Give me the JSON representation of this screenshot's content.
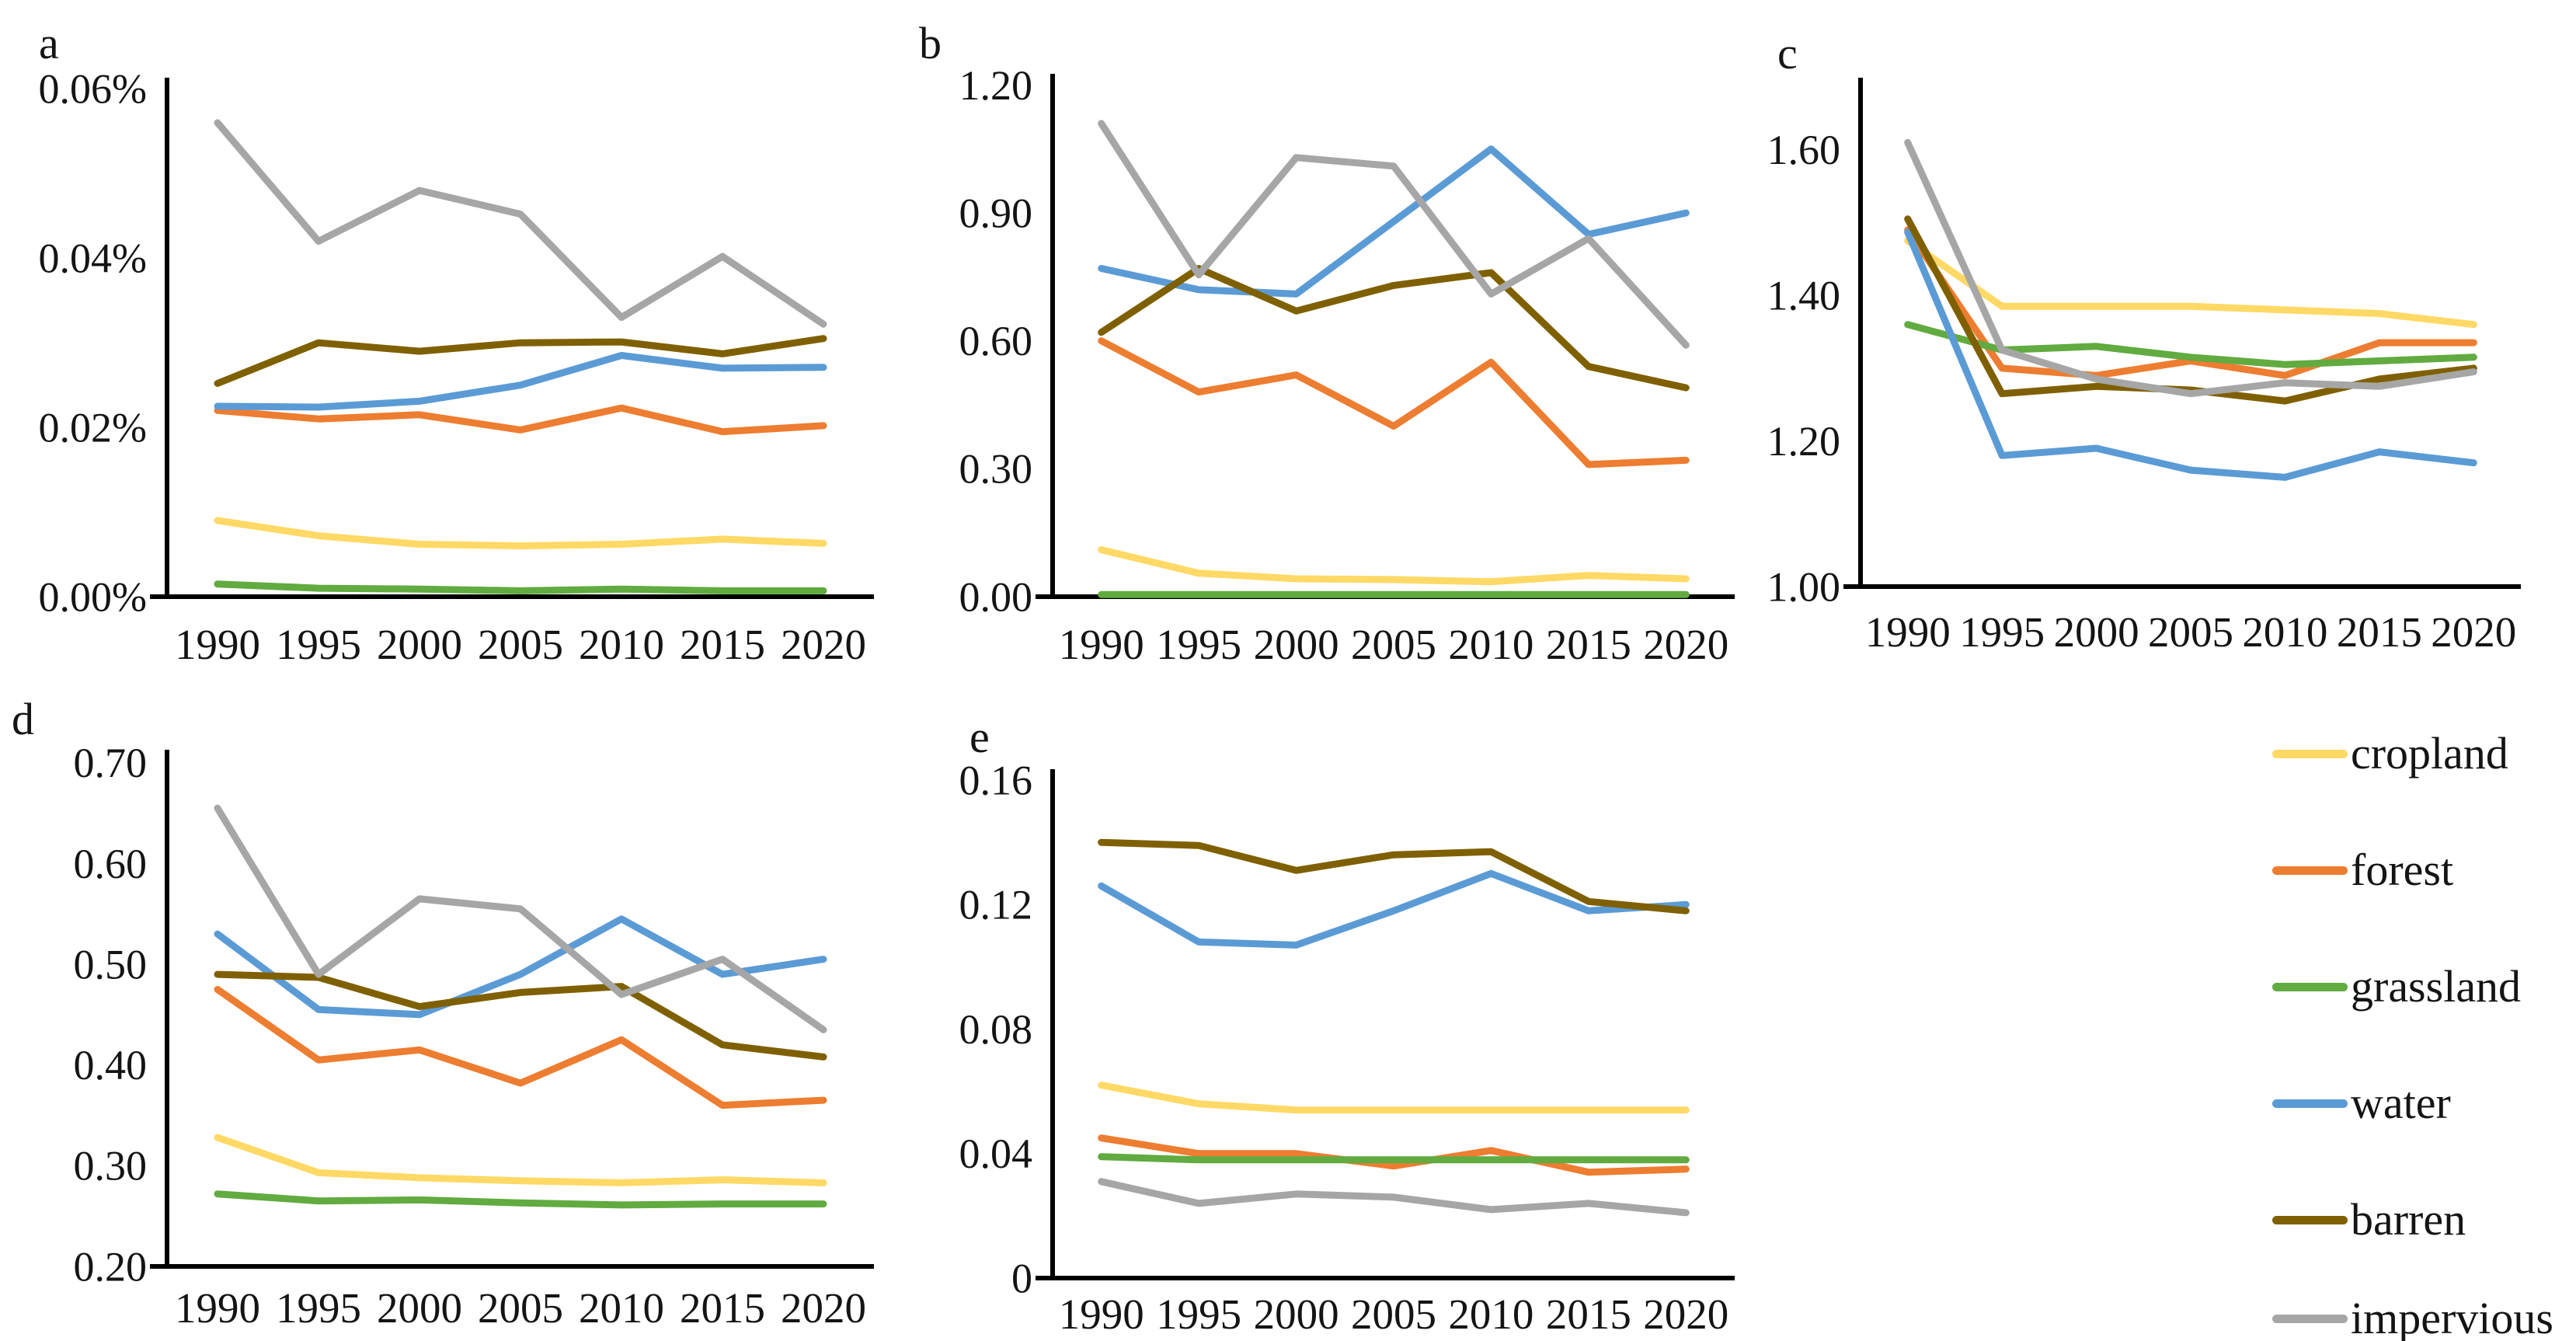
{
  "figure": {
    "background": "#ffffff",
    "axis_color": "#000000",
    "text_color": "#141414"
  },
  "legend": {
    "position": "right-bottom",
    "items": [
      {
        "name": "cropland",
        "label": "cropland",
        "color": "#FFD966"
      },
      {
        "name": "forest",
        "label": "forest",
        "color": "#ED7D31"
      },
      {
        "name": "grassland",
        "label": "grassland",
        "color": "#61AB40"
      },
      {
        "name": "water",
        "label": "water",
        "color": "#5B9BD5"
      },
      {
        "name": "barren",
        "label": "barren",
        "color": "#7F6000"
      },
      {
        "name": "impervious",
        "label": "impervious",
        "color": "#A6A6A6"
      }
    ]
  },
  "chart_data": [
    {
      "id": "a",
      "panel_label": "a",
      "type": "line",
      "grid": false,
      "categories": [
        "1990",
        "1995",
        "2000",
        "2005",
        "2010",
        "2015",
        "2020"
      ],
      "ylim": [
        0,
        0.06
      ],
      "yticks": [
        {
          "value": 0.0,
          "label": "0.00%"
        },
        {
          "value": 0.02,
          "label": "0.02%"
        },
        {
          "value": 0.04,
          "label": "0.04%"
        },
        {
          "value": 0.06,
          "label": "0.06%"
        }
      ],
      "series": [
        {
          "name": "cropland",
          "values": [
            0.009,
            0.0072,
            0.0062,
            0.006,
            0.0062,
            0.0068,
            0.0063
          ]
        },
        {
          "name": "forest",
          "values": [
            0.022,
            0.021,
            0.0215,
            0.0197,
            0.0223,
            0.0195,
            0.0202
          ]
        },
        {
          "name": "grassland",
          "values": [
            0.0015,
            0.001,
            0.0009,
            0.0007,
            0.0009,
            0.0007,
            0.0007
          ]
        },
        {
          "name": "water",
          "values": [
            0.0225,
            0.0224,
            0.0231,
            0.025,
            0.0285,
            0.027,
            0.0271
          ]
        },
        {
          "name": "barren",
          "values": [
            0.0252,
            0.03,
            0.029,
            0.03,
            0.0301,
            0.0287,
            0.0305
          ]
        },
        {
          "name": "impervious",
          "values": [
            0.056,
            0.042,
            0.048,
            0.0452,
            0.033,
            0.0402,
            0.0322
          ]
        }
      ]
    },
    {
      "id": "b",
      "panel_label": "b",
      "type": "line",
      "grid": false,
      "categories": [
        "1990",
        "1995",
        "2000",
        "2005",
        "2010",
        "2015",
        "2020"
      ],
      "ylim": [
        0,
        1.2
      ],
      "yticks": [
        {
          "value": 0.0,
          "label": "0.00"
        },
        {
          "value": 0.3,
          "label": "0.30"
        },
        {
          "value": 0.6,
          "label": "0.60"
        },
        {
          "value": 0.9,
          "label": "0.90"
        },
        {
          "value": 1.2,
          "label": "1.20"
        }
      ],
      "series": [
        {
          "name": "cropland",
          "values": [
            0.11,
            0.055,
            0.042,
            0.04,
            0.035,
            0.05,
            0.042
          ]
        },
        {
          "name": "forest",
          "values": [
            0.6,
            0.48,
            0.52,
            0.4,
            0.55,
            0.31,
            0.32
          ]
        },
        {
          "name": "grassland",
          "values": [
            0.005,
            0.005,
            0.005,
            0.005,
            0.005,
            0.005,
            0.005
          ]
        },
        {
          "name": "water",
          "values": [
            0.77,
            0.72,
            0.71,
            0.88,
            1.05,
            0.85,
            0.9
          ]
        },
        {
          "name": "barren",
          "values": [
            0.62,
            0.77,
            0.67,
            0.73,
            0.76,
            0.54,
            0.49
          ]
        },
        {
          "name": "impervious",
          "values": [
            1.11,
            0.755,
            1.03,
            1.01,
            0.71,
            0.84,
            0.59
          ]
        }
      ]
    },
    {
      "id": "c",
      "panel_label": "c",
      "type": "line",
      "grid": false,
      "categories": [
        "1990",
        "1995",
        "2000",
        "2005",
        "2010",
        "2015",
        "2020"
      ],
      "ylim": [
        1.0,
        1.6
      ],
      "yticks": [
        {
          "value": 1.0,
          "label": "1.00"
        },
        {
          "value": 1.2,
          "label": "1.20"
        },
        {
          "value": 1.4,
          "label": "1.40"
        },
        {
          "value": 1.6,
          "label": "1.60"
        }
      ],
      "series": [
        {
          "name": "cropland",
          "values": [
            1.475,
            1.385,
            1.385,
            1.385,
            1.38,
            1.375,
            1.36
          ]
        },
        {
          "name": "forest",
          "values": [
            1.49,
            1.3,
            1.29,
            1.31,
            1.29,
            1.335,
            1.335
          ]
        },
        {
          "name": "grassland",
          "values": [
            1.36,
            1.325,
            1.33,
            1.315,
            1.305,
            1.31,
            1.315
          ]
        },
        {
          "name": "water",
          "values": [
            1.487,
            1.18,
            1.19,
            1.16,
            1.15,
            1.185,
            1.17
          ]
        },
        {
          "name": "barren",
          "values": [
            1.505,
            1.265,
            1.275,
            1.27,
            1.255,
            1.285,
            1.3
          ]
        },
        {
          "name": "impervious",
          "values": [
            1.61,
            1.325,
            1.285,
            1.265,
            1.28,
            1.275,
            1.295
          ]
        }
      ]
    },
    {
      "id": "d",
      "panel_label": "d",
      "type": "line",
      "grid": false,
      "categories": [
        "1990",
        "1995",
        "2000",
        "2005",
        "2010",
        "2015",
        "2020"
      ],
      "ylim": [
        0.2,
        0.7
      ],
      "yticks": [
        {
          "value": 0.2,
          "label": "0.20"
        },
        {
          "value": 0.3,
          "label": "0.30"
        },
        {
          "value": 0.4,
          "label": "0.40"
        },
        {
          "value": 0.5,
          "label": "0.50"
        },
        {
          "value": 0.6,
          "label": "0.60"
        },
        {
          "value": 0.7,
          "label": "0.70"
        }
      ],
      "series": [
        {
          "name": "cropland",
          "values": [
            0.328,
            0.293,
            0.288,
            0.285,
            0.283,
            0.286,
            0.283
          ]
        },
        {
          "name": "forest",
          "values": [
            0.475,
            0.405,
            0.415,
            0.382,
            0.425,
            0.36,
            0.365
          ]
        },
        {
          "name": "grassland",
          "values": [
            0.272,
            0.265,
            0.266,
            0.263,
            0.261,
            0.262,
            0.262
          ]
        },
        {
          "name": "water",
          "values": [
            0.53,
            0.455,
            0.45,
            0.49,
            0.545,
            0.49,
            0.505
          ]
        },
        {
          "name": "barren",
          "values": [
            0.49,
            0.487,
            0.458,
            0.472,
            0.478,
            0.42,
            0.408
          ]
        },
        {
          "name": "impervious",
          "values": [
            0.655,
            0.49,
            0.565,
            0.555,
            0.47,
            0.505,
            0.435
          ]
        }
      ]
    },
    {
      "id": "e",
      "panel_label": "e",
      "type": "line",
      "grid": false,
      "categories": [
        "1990",
        "1995",
        "2000",
        "2005",
        "2010",
        "2015",
        "2020"
      ],
      "ylim": [
        0,
        0.16
      ],
      "yticks": [
        {
          "value": 0.0,
          "label": "0"
        },
        {
          "value": 0.04,
          "label": "0.04"
        },
        {
          "value": 0.08,
          "label": "0.08"
        },
        {
          "value": 0.12,
          "label": "0.12"
        },
        {
          "value": 0.16,
          "label": "0.16"
        }
      ],
      "series": [
        {
          "name": "cropland",
          "values": [
            0.062,
            0.056,
            0.054,
            0.054,
            0.054,
            0.054,
            0.054
          ]
        },
        {
          "name": "forest",
          "values": [
            0.045,
            0.04,
            0.04,
            0.036,
            0.041,
            0.034,
            0.035
          ]
        },
        {
          "name": "grassland",
          "values": [
            0.039,
            0.038,
            0.038,
            0.038,
            0.038,
            0.038,
            0.038
          ]
        },
        {
          "name": "water",
          "values": [
            0.126,
            0.108,
            0.107,
            0.118,
            0.13,
            0.118,
            0.12
          ]
        },
        {
          "name": "barren",
          "values": [
            0.14,
            0.139,
            0.131,
            0.136,
            0.137,
            0.121,
            0.118
          ]
        },
        {
          "name": "impervious",
          "values": [
            0.031,
            0.024,
            0.027,
            0.026,
            0.022,
            0.024,
            0.021
          ]
        }
      ]
    }
  ]
}
